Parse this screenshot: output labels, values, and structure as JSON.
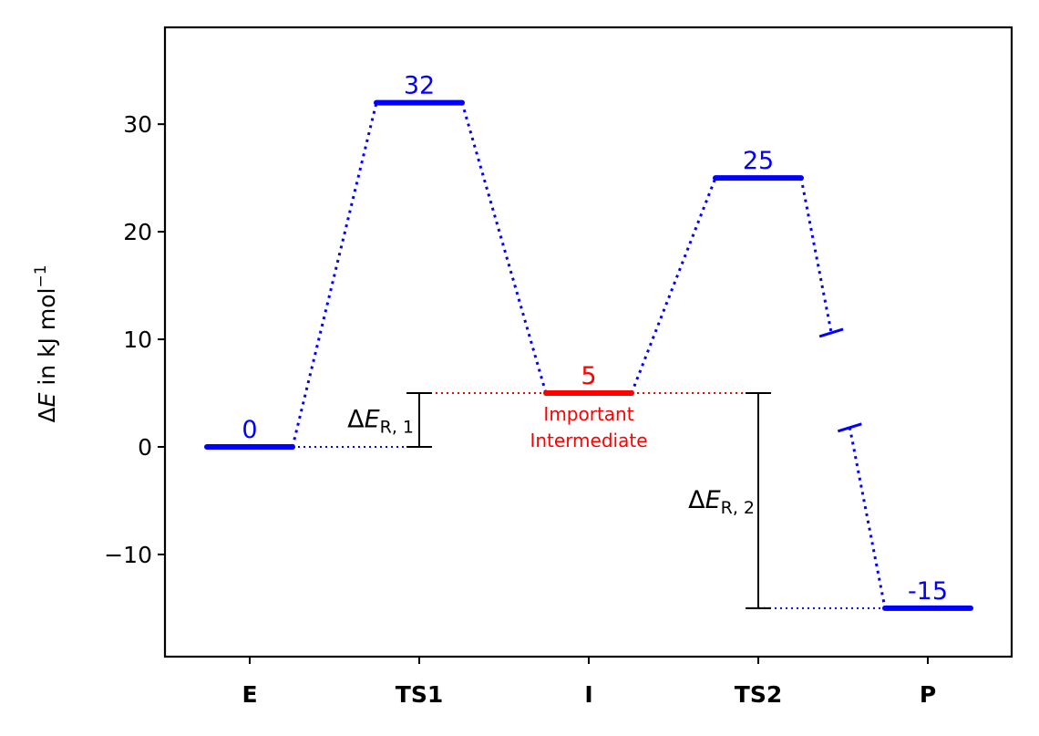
{
  "chart_data": {
    "type": "energy-diagram",
    "ylabel_prefix": "Δ",
    "ylabel_var": "E",
    "ylabel_rest": " in kJ mol",
    "ylabel_exp": "−1",
    "categories": [
      "E",
      "TS1",
      "I",
      "TS2",
      "P"
    ],
    "levels": [
      {
        "category": "E",
        "value": 0,
        "label": "0",
        "color": "#0000ff"
      },
      {
        "category": "TS1",
        "value": 32,
        "label": "32",
        "color": "#0000ff"
      },
      {
        "category": "I",
        "value": 5,
        "label": "5",
        "color": "#ff0000"
      },
      {
        "category": "TS2",
        "value": 25,
        "label": "25",
        "color": "#0000ff"
      },
      {
        "category": "P",
        "value": -15,
        "label": "-15",
        "color": "#0000ff"
      }
    ],
    "connections": [
      {
        "from": 0,
        "to": 1,
        "color": "#0000ff"
      },
      {
        "from": 1,
        "to": 2,
        "color": "#0000ff"
      },
      {
        "from": 2,
        "to": 3,
        "color": "#0000ff"
      },
      {
        "from": 3,
        "to": 4,
        "color": "#0000ff",
        "broken": true
      }
    ],
    "annotation": {
      "target": 2,
      "line1": "Important",
      "line2": "Intermediate",
      "color": "#ff0000"
    },
    "reaction_energies": [
      {
        "from": 0,
        "to": 2,
        "label_prefix": "Δ",
        "label_var": "E",
        "label_sub": "R, 1",
        "guide_color_low": "#0000ff",
        "guide_color_high": "#ff0000"
      },
      {
        "from": 4,
        "to": 2,
        "label_prefix": "Δ",
        "label_var": "E",
        "label_sub": "R, 2",
        "guide_color_low": "#0000ff",
        "guide_color_high": "#ff0000"
      }
    ],
    "yticks": [
      -10,
      0,
      10,
      20,
      30
    ],
    "ytick_labels": [
      "−10",
      "0",
      "10",
      "20",
      "30"
    ],
    "ylim": [
      -19.5,
      39
    ],
    "grid": false
  }
}
